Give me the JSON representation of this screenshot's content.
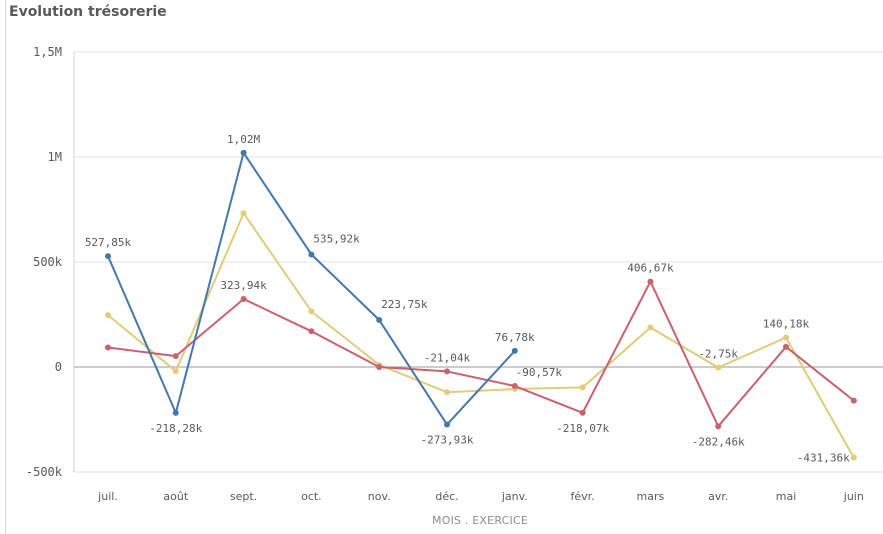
{
  "chart_data": {
    "type": "line",
    "title": "Evolution trésorerie",
    "xlabel": "MOIS . EXERCICE",
    "ylabel": "",
    "ylim": [
      -500000,
      1500000
    ],
    "y_ticks": [
      {
        "value": 1500000,
        "label": "1,5M"
      },
      {
        "value": 1000000,
        "label": "1M"
      },
      {
        "value": 500000,
        "label": "500k"
      },
      {
        "value": 0,
        "label": "0"
      },
      {
        "value": -500000,
        "label": "-500k"
      }
    ],
    "categories": [
      "juil.",
      "août",
      "sept.",
      "oct.",
      "nov.",
      "déc.",
      "janv.",
      "févr.",
      "mars",
      "avr.",
      "mai",
      "juin"
    ],
    "grid": true,
    "series": [
      {
        "color": "#4477aa",
        "values": [
          527850,
          -218280,
          1020000,
          535920,
          223750,
          -273930,
          76780,
          null,
          null,
          null,
          null,
          null
        ]
      },
      {
        "color": "#c9616f",
        "values": [
          93000,
          52000,
          323940,
          170000,
          0,
          -21040,
          -90570,
          -218070,
          406670,
          -282460,
          96000,
          -160000
        ]
      },
      {
        "color": "#e0cc7a",
        "values": [
          247000,
          -20000,
          732000,
          265000,
          10000,
          -120000,
          -105000,
          -97000,
          188000,
          -2750,
          140180,
          -431360
        ]
      }
    ],
    "data_labels": [
      {
        "series": 0,
        "index": 0,
        "text": "527,85k",
        "pos": "above"
      },
      {
        "series": 0,
        "index": 1,
        "text": "-218,28k",
        "pos": "below"
      },
      {
        "series": 0,
        "index": 2,
        "text": "1,02M",
        "pos": "above"
      },
      {
        "series": 0,
        "index": 3,
        "text": "535,92k",
        "pos": "right-above"
      },
      {
        "series": 0,
        "index": 4,
        "text": "223,75k",
        "pos": "right-above"
      },
      {
        "series": 0,
        "index": 5,
        "text": "-273,93k",
        "pos": "below"
      },
      {
        "series": 0,
        "index": 6,
        "text": "76,78k",
        "pos": "above"
      },
      {
        "series": 1,
        "index": 2,
        "text": "323,94k",
        "pos": "above"
      },
      {
        "series": 1,
        "index": 5,
        "text": "-21,04k",
        "pos": "above"
      },
      {
        "series": 1,
        "index": 6,
        "text": "-90,57k",
        "pos": "right-below-far"
      },
      {
        "series": 1,
        "index": 7,
        "text": "-218,07k",
        "pos": "below"
      },
      {
        "series": 1,
        "index": 8,
        "text": "406,67k",
        "pos": "above"
      },
      {
        "series": 1,
        "index": 9,
        "text": "-282,46k",
        "pos": "below"
      },
      {
        "series": 2,
        "index": 9,
        "text": "-2,75k",
        "pos": "above"
      },
      {
        "series": 2,
        "index": 10,
        "text": "140,18k",
        "pos": "above"
      },
      {
        "series": 2,
        "index": 11,
        "text": "-431,36k",
        "pos": "left"
      }
    ]
  }
}
